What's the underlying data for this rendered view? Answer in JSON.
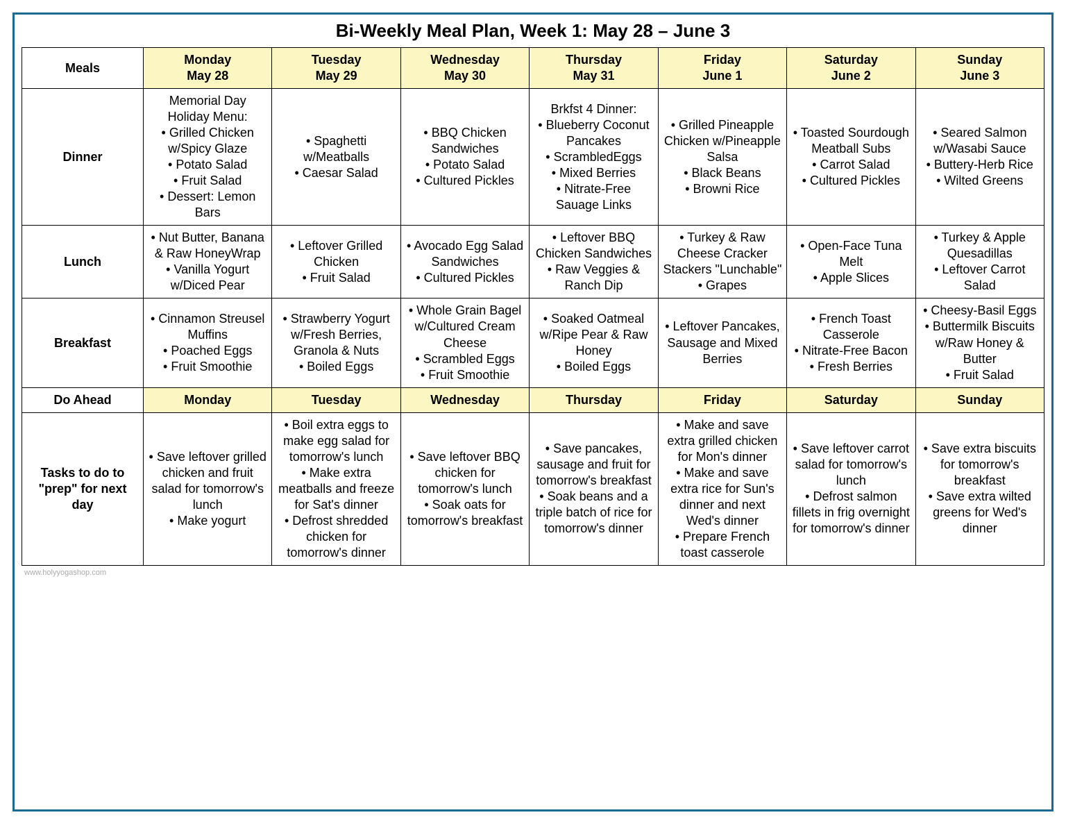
{
  "title": "Bi-Weekly Meal Plan, Week 1: May 28 – June 3",
  "footer": "www.holyyogashop.com",
  "headers": {
    "meals_label": "Meals",
    "doahead_label": "Do Ahead",
    "days_full": [
      {
        "top": "Monday",
        "bottom": "May 28"
      },
      {
        "top": "Tuesday",
        "bottom": "May 29"
      },
      {
        "top": "Wednesday",
        "bottom": "May 30"
      },
      {
        "top": "Thursday",
        "bottom": "May 31"
      },
      {
        "top": "Friday",
        "bottom": "June 1"
      },
      {
        "top": "Saturday",
        "bottom": "June 2"
      },
      {
        "top": "Sunday",
        "bottom": "June 3"
      }
    ],
    "days_short": [
      "Monday",
      "Tuesday",
      "Wednesday",
      "Thursday",
      "Friday",
      "Saturday",
      "Sunday"
    ]
  },
  "rows": {
    "dinner": {
      "label": "Dinner",
      "cells": [
        {
          "lead": "Memorial Day Holiday Menu:",
          "items": [
            "Grilled Chicken w/Spicy Glaze",
            "Potato Salad",
            "Fruit Salad",
            "Dessert: Lemon Bars"
          ]
        },
        {
          "items": [
            "Spaghetti w/Meatballs",
            "Caesar Salad"
          ]
        },
        {
          "items": [
            "BBQ Chicken Sandwiches",
            "Potato Salad",
            "Cultured Pickles"
          ]
        },
        {
          "lead": "Brkfst 4 Dinner:",
          "items": [
            "Blueberry Coconut Pancakes",
            "ScrambledEggs",
            "Mixed Berries",
            "Nitrate-Free Sauage Links"
          ]
        },
        {
          "items": [
            "Grilled Pineapple Chicken w/Pineapple Salsa",
            "Black Beans",
            "Browni Rice"
          ]
        },
        {
          "items": [
            "Toasted Sourdough Meatball Subs",
            "Carrot Salad",
            "Cultured Pickles"
          ]
        },
        {
          "items": [
            "Seared Salmon w/Wasabi Sauce",
            "Buttery-Herb Rice",
            "Wilted Greens"
          ]
        }
      ]
    },
    "lunch": {
      "label": "Lunch",
      "cells": [
        {
          "items": [
            "Nut Butter, Banana & Raw HoneyWrap",
            "Vanilla Yogurt w/Diced Pear"
          ]
        },
        {
          "items": [
            "Leftover Grilled Chicken",
            "Fruit Salad"
          ]
        },
        {
          "items": [
            "Avocado Egg Salad Sandwiches",
            "Cultured Pickles"
          ]
        },
        {
          "items": [
            "Leftover BBQ Chicken Sandwiches",
            "Raw Veggies & Ranch Dip"
          ]
        },
        {
          "items": [
            "Turkey & Raw Cheese Cracker Stackers \"Lunchable\"",
            "Grapes"
          ]
        },
        {
          "items": [
            "Open-Face Tuna Melt",
            "Apple Slices"
          ]
        },
        {
          "items": [
            "Turkey & Apple Quesadillas",
            "Leftover Carrot Salad"
          ]
        }
      ]
    },
    "breakfast": {
      "label": "Breakfast",
      "cells": [
        {
          "items": [
            "Cinnamon Streusel Muffins",
            "Poached Eggs",
            "Fruit Smoothie"
          ]
        },
        {
          "items": [
            "Strawberry Yogurt w/Fresh Berries, Granola & Nuts",
            "Boiled Eggs"
          ]
        },
        {
          "items": [
            "Whole Grain Bagel w/Cultured Cream Cheese",
            "Scrambled Eggs",
            "Fruit Smoothie"
          ]
        },
        {
          "items": [
            "Soaked Oatmeal w/Ripe Pear & Raw Honey",
            "Boiled Eggs"
          ]
        },
        {
          "items": [
            "Leftover Pancakes, Sausage and Mixed Berries"
          ]
        },
        {
          "items": [
            "French Toast Casserole",
            "Nitrate-Free Bacon",
            "Fresh Berries"
          ]
        },
        {
          "items": [
            "Cheesy-Basil Eggs",
            "Buttermilk Biscuits w/Raw Honey & Butter",
            "Fruit Salad"
          ]
        }
      ]
    },
    "tasks": {
      "label": "Tasks to do to \"prep\" for next day",
      "cells": [
        {
          "items": [
            "Save leftover grilled chicken and fruit salad for tomorrow's lunch",
            "Make yogurt"
          ]
        },
        {
          "items": [
            "Boil extra eggs to make egg salad for tomorrow's lunch",
            "Make extra meatballs and freeze for Sat's dinner",
            "Defrost shredded chicken for tomorrow's dinner"
          ]
        },
        {
          "items": [
            "Save leftover BBQ chicken for tomorrow's lunch",
            "Soak oats for tomorrow's breakfast"
          ]
        },
        {
          "items": [
            "Save pancakes, sausage and fruit for tomorrow's breakfast",
            "Soak beans and a triple batch of rice for tomorrow's dinner"
          ]
        },
        {
          "items": [
            "Make and save extra grilled chicken for Mon's dinner",
            "Make and save extra rice for Sun's dinner and next Wed's dinner",
            "Prepare French toast casserole"
          ]
        },
        {
          "items": [
            "Save leftover carrot salad for tomorrow's lunch",
            "Defrost salmon fillets in frig overnight for tomorrow's dinner"
          ]
        },
        {
          "items": [
            "Save extra biscuits for tomorrow's breakfast",
            "Save extra wilted greens for Wed's dinner"
          ]
        }
      ]
    }
  },
  "style": {
    "header_bg": "#fcf7c2",
    "border_color": "#000000",
    "frame_border": "#1a6b8f",
    "font_size_body": 18,
    "font_size_title": 26
  }
}
